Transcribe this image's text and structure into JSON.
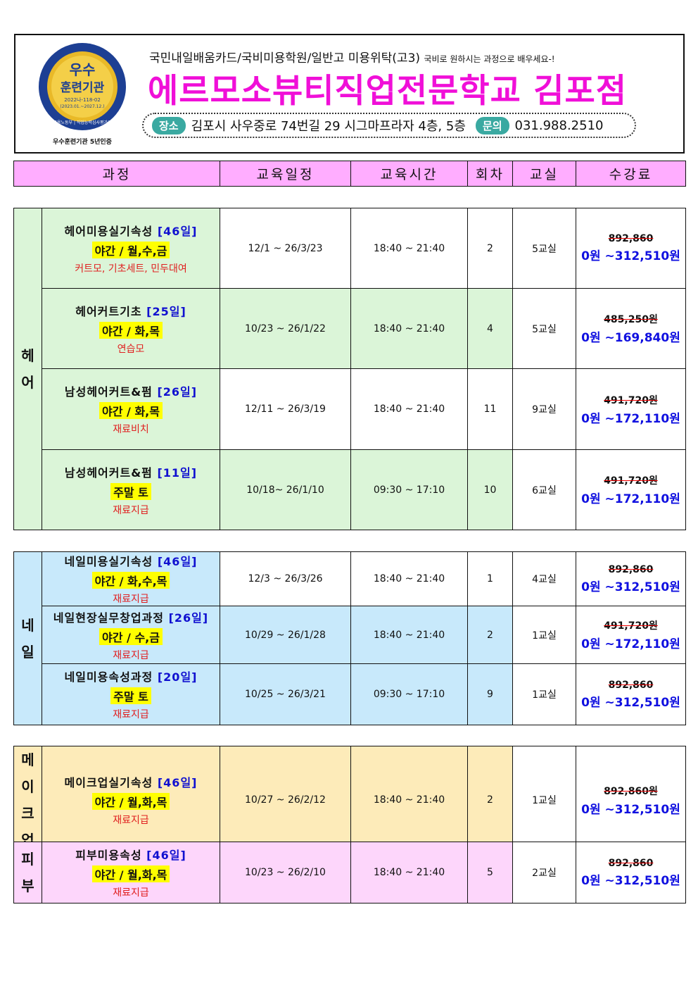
{
  "banner": {
    "logo": {
      "line1": "우수",
      "line2": "훈련기관",
      "code": "2022나-118-02",
      "period": "(2023.01.~2027.12.)",
      "ring": "고용노동부 | 직업능력심사평가원",
      "caption": "우수훈련기관 5년인증"
    },
    "subtitle": "국민내일배움카드/국비미용학원/일반고 미용위탁(고3)",
    "subtitle_small": "국비로 원하시는 과정으로 배우세요-!",
    "title": "에르모소뷰티직업전문학교 김포점",
    "location_label": "장소",
    "address": "김포시 사우중로 74번길 29 시그마프라자 4층, 5층",
    "contact_label": "문의",
    "phone": "031.988.2510"
  },
  "columns": [
    "과정",
    "교육일정",
    "교육시간",
    "회차",
    "교실",
    "수강료"
  ],
  "colors": {
    "hair": "#dbf5d8",
    "nail": "#c8e9fb",
    "makeup": "#fdebb9",
    "skin": "#fdd6fb",
    "header": "#ffadff",
    "title": "#f00fd8"
  },
  "sections": [
    {
      "category": "헤어",
      "key": "hair",
      "rows": [
        {
          "name": "헤어미용실기속성",
          "days": "[46일]",
          "schedule": "야간 / 월,수,금",
          "note": "커트모, 기초세트, 민두대여",
          "dates": "12/1 ~ 26/3/23",
          "time": "18:40 ~ 21:40",
          "session": "2",
          "room": "5교실",
          "price_old": "892,860",
          "price_new": "0원 ~312,510원",
          "shaded": false
        },
        {
          "name": "헤어커트기초",
          "days": "[25일]",
          "schedule": "야간 / 화,목",
          "note": "연습모",
          "dates": "10/23 ~ 26/1/22",
          "time": "18:40 ~ 21:40",
          "session": "4",
          "room": "5교실",
          "price_old": "485,250원",
          "price_new": "0원 ~169,840원",
          "shaded": true
        },
        {
          "name": "남성헤어커트&펌",
          "days": "[26일]",
          "schedule": "야간 / 화,목",
          "note": "재료비치",
          "dates": "12/11 ~ 26/3/19",
          "time": "18:40 ~ 21:40",
          "session": "11",
          "room": "9교실",
          "price_old": "491,720원",
          "price_new": "0원 ~172,110원",
          "shaded": false
        },
        {
          "name": "남성헤어커트&펌",
          "days": "[11일]",
          "schedule": "주말 토",
          "note": "재료지급",
          "dates": "10/18~ 26/1/10",
          "time": "09:30 ~ 17:10",
          "session": "10",
          "room": "6교실",
          "price_old": "491,720원",
          "price_new": "0원 ~172,110원",
          "shaded": true
        }
      ]
    },
    {
      "category": "네일",
      "key": "nail",
      "rows": [
        {
          "name": "네일미용실기속성",
          "days": "[46일]",
          "schedule": "야간 / 화,수,목",
          "note": "재료지급",
          "dates": "12/3 ~ 26/3/26",
          "time": "18:40 ~ 21:40",
          "session": "1",
          "room": "4교실",
          "price_old": "892,860",
          "price_new": "0원 ~312,510원",
          "shaded": false
        },
        {
          "name": "네일현장실무창업과정",
          "days": "[26일]",
          "schedule": "야간 / 수,금",
          "note": "재료지급",
          "dates": "10/29 ~ 26/1/28",
          "time": "18:40 ~ 21:40",
          "session": "2",
          "room": "1교실",
          "price_old": "491,720원",
          "price_new": "0원 ~172,110원",
          "shaded": true
        },
        {
          "name": "네일미용속성과정",
          "days": "[20일]",
          "schedule": "주말 토",
          "note": "재료지급",
          "dates": "10/25 ~ 26/3/21",
          "time": "09:30 ~ 17:10",
          "session": "9",
          "room": "1교실",
          "price_old": "892,860",
          "price_new": "0원 ~312,510원",
          "shaded": true
        }
      ]
    },
    {
      "category": "메이크업",
      "key": "makeup",
      "rows": [
        {
          "name": "메이크업실기속성",
          "days": "[46일]",
          "schedule": "야간 / 월,화,목",
          "note": "재료지급",
          "dates": "10/27 ~ 26/2/12",
          "time": "18:40 ~ 21:40",
          "session": "2",
          "room": "1교실",
          "price_old": "892,860원",
          "price_new": "0원 ~312,510원",
          "shaded": true
        }
      ]
    },
    {
      "category": "피부",
      "key": "skin",
      "rows": [
        {
          "name": "피부미용속성",
          "days": "[46일]",
          "schedule": "야간 / 월,화,목",
          "note": "재료지급",
          "dates": "10/23 ~ 26/2/10",
          "time": "18:40 ~ 21:40",
          "session": "5",
          "room": "2교실",
          "price_old": "892,860",
          "price_new": "0원 ~312,510원",
          "shaded": true
        }
      ]
    }
  ]
}
